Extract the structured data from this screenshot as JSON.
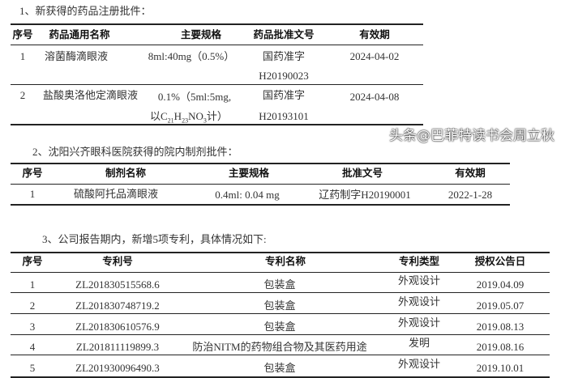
{
  "section1": {
    "title": "1、新获得的药品注册批件：",
    "headers": [
      "序号",
      "药品通用名称",
      "主要规格",
      "药品批准文号",
      "有效期"
    ],
    "rows": [
      {
        "no": "1",
        "name": "溶菌酶滴眼液",
        "spec": "8ml:40mg（0.5%）",
        "spec2": "",
        "approval": "国药准字",
        "approval2": "H20190023",
        "valid": "2024-04-02"
      },
      {
        "no": "2",
        "name": "盐酸奥洛他定滴眼液",
        "spec": "0.1%（5ml:5mg,",
        "spec2": "以C21H23NO3计）",
        "approval": "国药准字",
        "approval2": "H20193101",
        "valid": "2024-04-08"
      }
    ]
  },
  "section2": {
    "title": "2、沈阳兴齐眼科医院获得的院内制剂批件：",
    "headers": [
      "序号",
      "制剂名称",
      "主要规格",
      "批准文号",
      "有效期"
    ],
    "rows": [
      {
        "no": "1",
        "name": "硫酸阿托品滴眼液",
        "spec": "0.4ml: 0.04 mg",
        "approval": "辽药制字H20190001",
        "valid": "2022-1-28"
      }
    ]
  },
  "section3": {
    "title": "3、公司报告期内，新增5项专利，具体情况如下:",
    "headers": [
      "序号",
      "专利号",
      "专利名称",
      "专利类型",
      "授权公告日"
    ],
    "rows": [
      {
        "no": "1",
        "patent_no": "ZL201830515568.6",
        "name": "包装盒",
        "type": "外观设计",
        "date": "2019.04.09"
      },
      {
        "no": "2",
        "patent_no": "ZL201830748719.2",
        "name": "包装盒",
        "type": "外观设计",
        "date": "2019.05.07"
      },
      {
        "no": "3",
        "patent_no": "ZL201830610576.9",
        "name": "包装盒",
        "type": "外观设计",
        "date": "2019.08.13"
      },
      {
        "no": "4",
        "patent_no": "ZL201811119899.3",
        "name": "防治NITM的药物组合物及其医药用途",
        "type": "发明",
        "date": "2019.08.16"
      },
      {
        "no": "5",
        "patent_no": "ZL201930096490.3",
        "name": "包装盒",
        "type": "外观设计",
        "date": "2019.10.01"
      }
    ]
  },
  "watermark": "头条@巴菲特读书会周立秋"
}
